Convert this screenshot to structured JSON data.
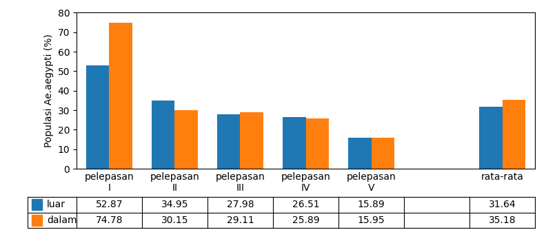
{
  "chart_data": {
    "type": "bar",
    "categories": [
      "pelepasan\nI",
      "pelepasan\nII",
      "pelepasan\nIII",
      "pelepasan\nIV",
      "pelepasan\nV",
      null,
      "rata-rata"
    ],
    "ylabel": "Populasi Ae.aegypti (%)",
    "series": [
      {
        "name": "luar",
        "values": [
          52.87,
          34.95,
          27.98,
          26.51,
          15.89,
          null,
          31.64
        ]
      },
      {
        "name": "dalam",
        "values": [
          74.78,
          30.15,
          29.11,
          25.89,
          15.95,
          null,
          35.18
        ]
      }
    ],
    "ylim": [
      0,
      80
    ],
    "yticks": [
      0,
      10,
      20,
      30,
      40,
      50,
      60,
      70,
      80
    ],
    "data_labels": true
  }
}
